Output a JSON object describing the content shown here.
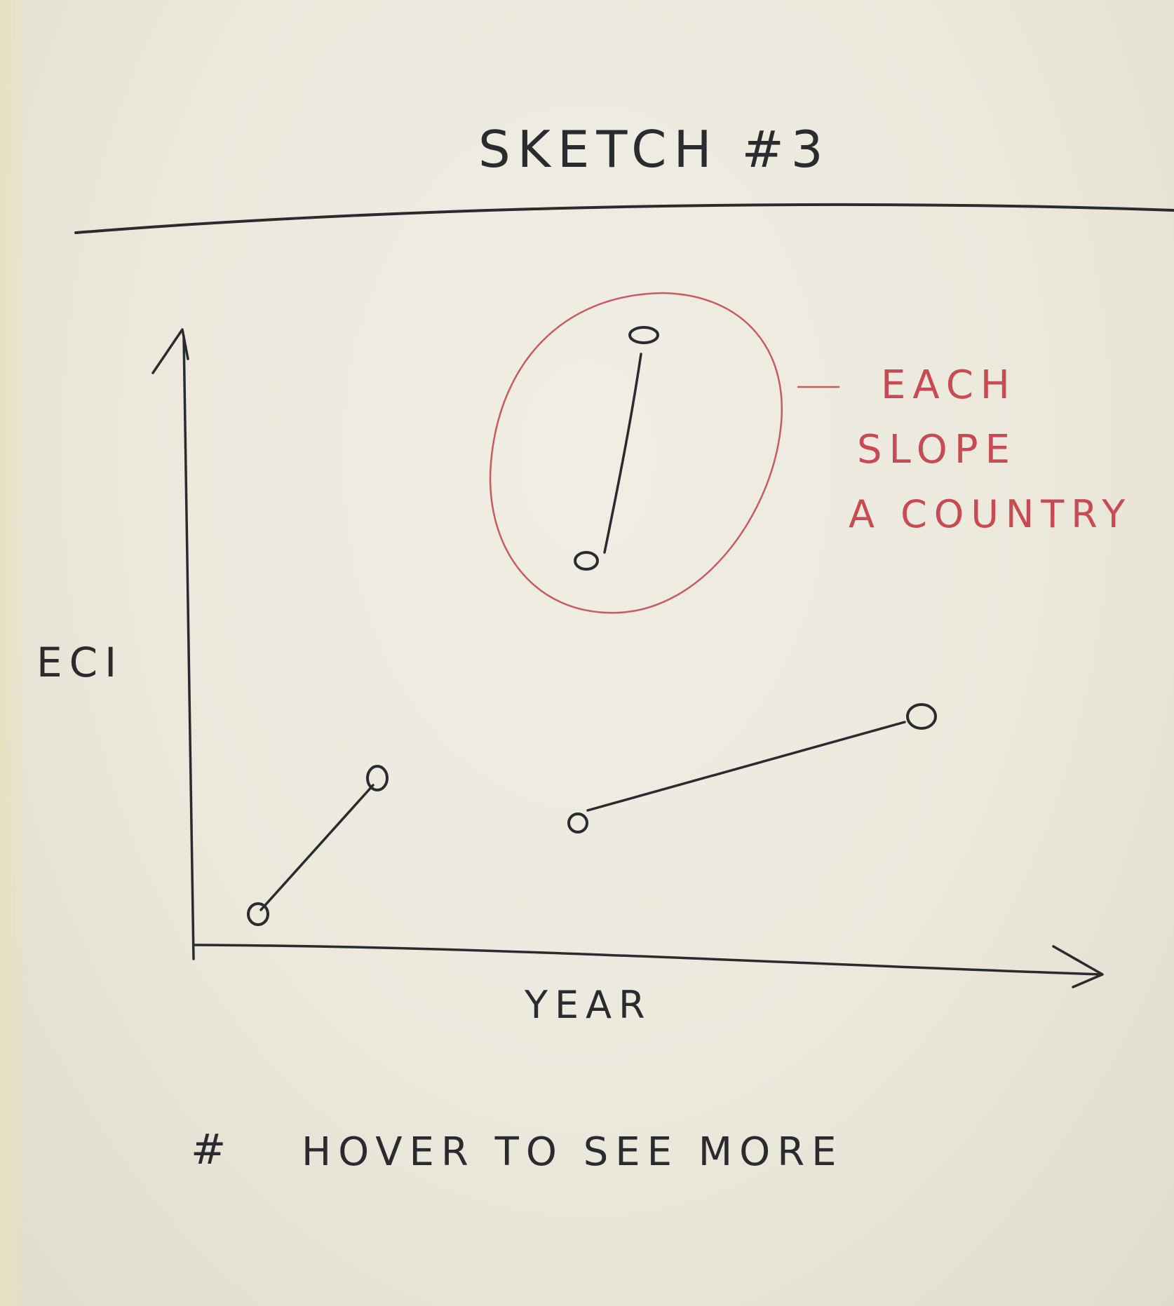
{
  "title": "SKETCH #3",
  "axes": {
    "y_label": "ECI",
    "x_label": "YEAR"
  },
  "annotation": {
    "lines": [
      "EACH",
      "SLOPE",
      "A COUNTRY"
    ],
    "color": "#c84a52"
  },
  "footer": {
    "bullet": "#",
    "text": "HOVER TO SEE MORE"
  },
  "colors": {
    "ink": "#2b2a2e",
    "annotation": "#c85a62",
    "paper": "#ebe8dc"
  }
}
